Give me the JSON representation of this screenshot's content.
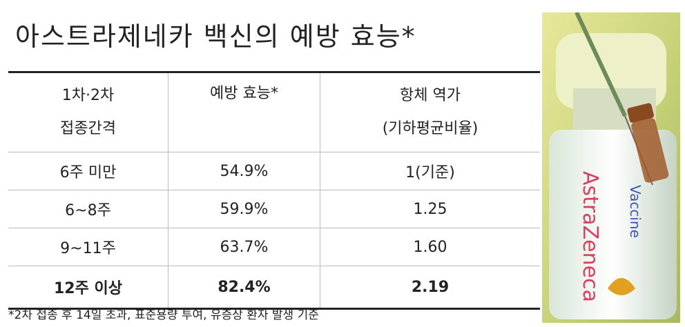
{
  "title": "아스트라제네카 백신의 예방 효능*",
  "table": {
    "header": [
      [
        "1차·2차",
        "접종간격"
      ],
      [
        "예방 효능*"
      ],
      [
        "항체 역가",
        "(기하평균비율)"
      ]
    ],
    "rows": [
      [
        "6주 미만",
        "54.9%",
        "1(기준)"
      ],
      [
        "6~8주",
        "59.9%",
        "1.25"
      ],
      [
        "9~11주",
        "63.7%",
        "1.60"
      ],
      [
        "12주 이상",
        "82.4%",
        "2.19"
      ]
    ]
  },
  "footnote": "*2차 접종 후 14일 초과, 표준용량 투여, 유증상 환자 발생 기준",
  "photo": {
    "labels": [
      "AstraZeneca",
      "Vaccine"
    ]
  }
}
